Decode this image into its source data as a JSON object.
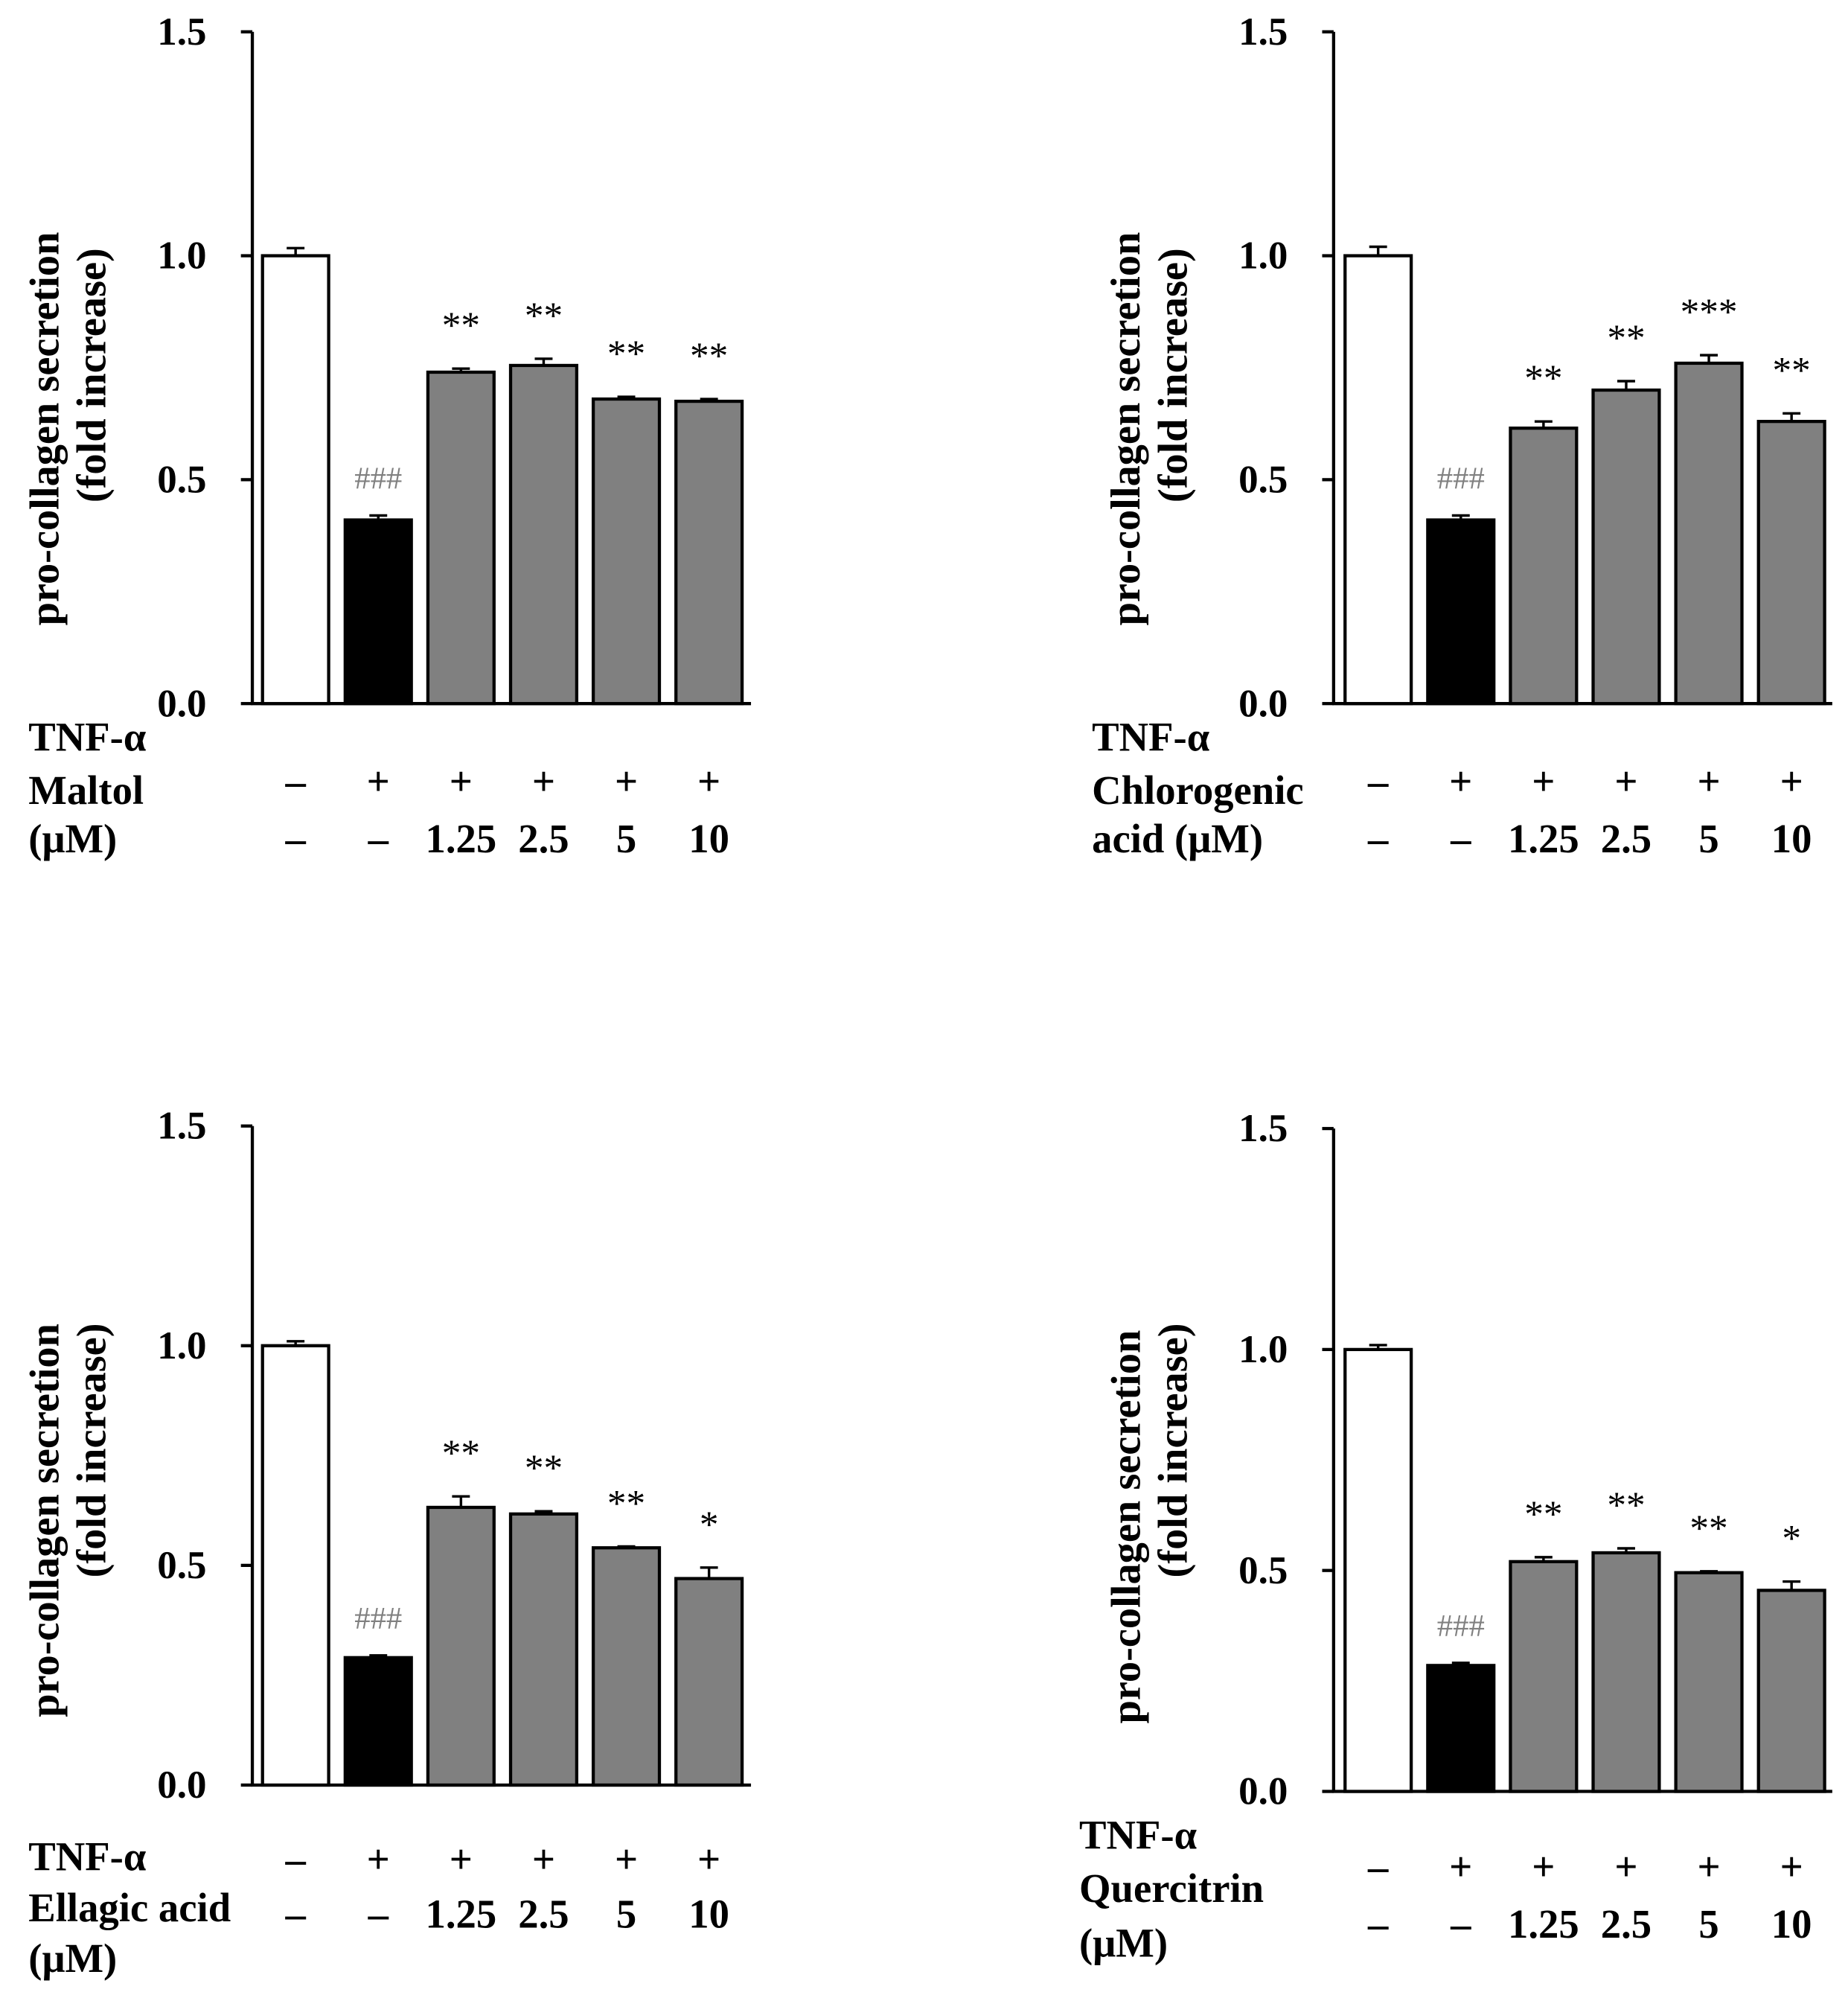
{
  "colors": {
    "axis": "#000000",
    "bar_outline": "#000000",
    "hash_annotation": "#808080"
  },
  "chart_data": [
    {
      "type": "bar",
      "ylabel": [
        "pro-collagen secretion",
        "(fold increase)"
      ],
      "ylim": [
        0,
        1.5
      ],
      "yticks": [
        0,
        0.5,
        1.0,
        1.5
      ],
      "ytick_labels": [
        "0.0",
        "0.5",
        "1.0",
        "1.5"
      ],
      "values": [
        1.0,
        0.41,
        0.74,
        0.755,
        0.68,
        0.675
      ],
      "errors": [
        0.017,
        0.01,
        0.008,
        0.015,
        0.005,
        0.005
      ],
      "bar_fills": [
        "#ffffff",
        "#000000",
        "#808080",
        "#808080",
        "#808080",
        "#808080"
      ],
      "annotations": [
        "",
        "###",
        "**",
        "**",
        "**",
        "**"
      ],
      "row_labels": [
        "TNF-α",
        "Maltol",
        "(μM)"
      ],
      "tnf_alpha": [
        "–",
        "+",
        "+",
        "+",
        "+",
        "+"
      ],
      "dose": [
        "–",
        "–",
        "1.25",
        "2.5",
        "5",
        "10"
      ]
    },
    {
      "type": "bar",
      "ylabel": [
        "pro-collagen secretion",
        "(fold increase)"
      ],
      "ylim": [
        0,
        1.5
      ],
      "yticks": [
        0,
        0.5,
        1.0,
        1.5
      ],
      "ytick_labels": [
        "0.0",
        "0.5",
        "1.0",
        "1.5"
      ],
      "values": [
        1.0,
        0.41,
        0.615,
        0.7,
        0.76,
        0.63
      ],
      "errors": [
        0.02,
        0.01,
        0.015,
        0.02,
        0.018,
        0.018
      ],
      "bar_fills": [
        "#ffffff",
        "#000000",
        "#808080",
        "#808080",
        "#808080",
        "#808080"
      ],
      "annotations": [
        "",
        "###",
        "**",
        "**",
        "***",
        "**"
      ],
      "row_labels": [
        "TNF-α",
        "Chlorogenic",
        "acid (μM)"
      ],
      "tnf_alpha": [
        "–",
        "+",
        "+",
        "+",
        "+",
        "+"
      ],
      "dose": [
        "–",
        "–",
        "1.25",
        "2.5",
        "5",
        "10"
      ]
    },
    {
      "type": "bar",
      "ylabel": [
        "pro-collagen secretion",
        "(fold increase)"
      ],
      "ylim": [
        0,
        1.5
      ],
      "yticks": [
        0,
        0.5,
        1.0,
        1.5
      ],
      "ytick_labels": [
        "0.0",
        "0.5",
        "1.0",
        "1.5"
      ],
      "values": [
        1.0,
        0.29,
        0.632,
        0.617,
        0.54,
        0.47
      ],
      "errors": [
        0.01,
        0.005,
        0.025,
        0.006,
        0.003,
        0.025
      ],
      "bar_fills": [
        "#ffffff",
        "#000000",
        "#808080",
        "#808080",
        "#808080",
        "#808080"
      ],
      "annotations": [
        "",
        "###",
        "**",
        "**",
        "**",
        "*"
      ],
      "row_labels": [
        "TNF-α",
        "Ellagic acid",
        "(μM)"
      ],
      "tnf_alpha": [
        "–",
        "+",
        "+",
        "+",
        "+",
        "+"
      ],
      "dose": [
        "–",
        "–",
        "1.25",
        "2.5",
        "5",
        "10"
      ]
    },
    {
      "type": "bar",
      "ylabel": [
        "pro-collagen secretion",
        "(fold increase)"
      ],
      "ylim": [
        0,
        1.5
      ],
      "yticks": [
        0,
        0.5,
        1.0,
        1.5
      ],
      "ytick_labels": [
        "0.0",
        "0.5",
        "1.0",
        "1.5"
      ],
      "values": [
        1.0,
        0.285,
        0.52,
        0.54,
        0.495,
        0.455
      ],
      "errors": [
        0.01,
        0.006,
        0.01,
        0.01,
        0.003,
        0.02
      ],
      "bar_fills": [
        "#ffffff",
        "#000000",
        "#808080",
        "#808080",
        "#808080",
        "#808080"
      ],
      "annotations": [
        "",
        "###",
        "**",
        "**",
        "**",
        "*"
      ],
      "row_labels": [
        "TNF-α",
        "Quercitrin",
        "(μM)"
      ],
      "tnf_alpha": [
        "–",
        "+",
        "+",
        "+",
        "+",
        "+"
      ],
      "dose": [
        "–",
        "–",
        "1.25",
        "2.5",
        "5",
        "10"
      ]
    }
  ]
}
